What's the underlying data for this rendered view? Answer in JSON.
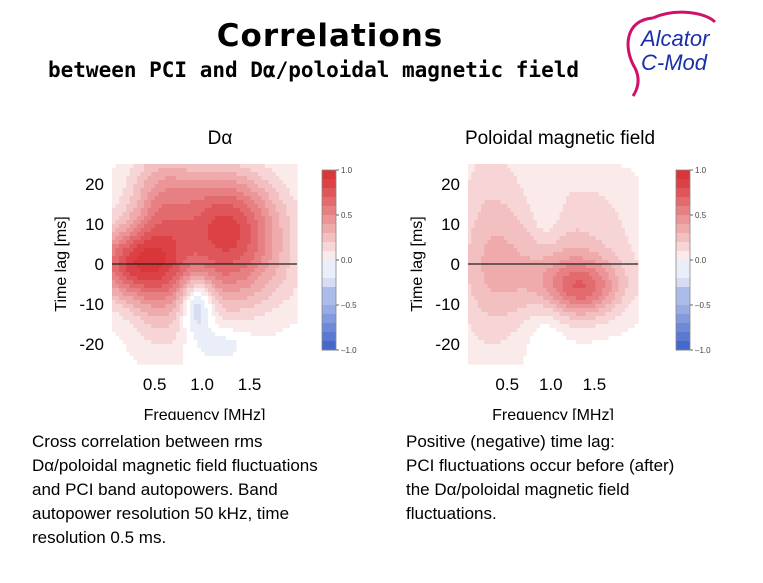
{
  "header": {
    "title": "Correlations",
    "subtitle": "between PCI and Dα/poloidal magnetic field"
  },
  "logo": {
    "line1": "Alcator",
    "line2": "C-Mod",
    "color": "#1a2fa8",
    "swoosh_color": "#d0106a"
  },
  "panels": {
    "left": {
      "title": "Dα"
    },
    "right": {
      "title": "Poloidal magnetic field"
    }
  },
  "captions": {
    "left": [
      "Cross correlation between rms",
      "Dα/poloidal magnetic field fluctuations",
      "and PCI band autopowers. Band",
      "autopower resolution 50 kHz, time",
      "resolution 0.5 ms."
    ],
    "right": [
      "Positive (negative) time lag:",
      "PCI fluctuations occur before (after)",
      "the Dα/poloidal magnetic field",
      "fluctuations."
    ]
  },
  "chart_data": [
    {
      "type": "heatmap",
      "title": "Dα",
      "xlabel": "Frequency [MHz]",
      "ylabel": "Time lag [ms]",
      "xticks": [
        "0.5",
        "1.0",
        "1.5"
      ],
      "xtick_values": [
        0.5,
        1.0,
        1.5
      ],
      "yticks": [
        "20",
        "10",
        "0",
        "-10",
        "-20"
      ],
      "ytick_values": [
        20,
        10,
        0,
        -10,
        -20
      ],
      "xlim": [
        0.05,
        2.0
      ],
      "ylim": [
        -25,
        25
      ],
      "colorbar": {
        "ticks": [
          "1.0",
          "0.5",
          "0.0",
          "–0.5",
          "–1.0"
        ],
        "values": [
          1.0,
          0.5,
          0.0,
          -0.5,
          -1.0
        ]
      },
      "colors": {
        "positive": "#d9363a",
        "negative": "#3a5fc8"
      },
      "features": [
        {
          "fx": 0.2,
          "lag": 0,
          "sx": 0.28,
          "sy": 6,
          "amp": 0.62
        },
        {
          "fx": 0.55,
          "lag": 5,
          "sx": 0.22,
          "sy": 16,
          "amp": 0.4
        },
        {
          "fx": 1.3,
          "lag": 10,
          "sx": 0.38,
          "sy": 9,
          "amp": 0.62
        },
        {
          "fx": 1.0,
          "lag": 3,
          "sx": 0.6,
          "sy": 12,
          "amp": 0.3
        },
        {
          "fx": 1.3,
          "lag": -4,
          "sx": 0.5,
          "sy": 7,
          "amp": 0.18
        },
        {
          "fx": 0.85,
          "lag": 20,
          "sx": 0.4,
          "sy": 6,
          "amp": 0.12
        },
        {
          "fx": 0.95,
          "lag": -10,
          "sx": 0.12,
          "sy": 5,
          "amp": -0.5
        },
        {
          "fx": 1.2,
          "lag": -20,
          "sx": 0.2,
          "sy": 3,
          "amp": -0.15
        }
      ]
    },
    {
      "type": "heatmap",
      "title": "Poloidal magnetic field",
      "xlabel": "Frequency [MHz]",
      "ylabel": "Time lag [ms]",
      "xticks": [
        "0.5",
        "1.0",
        "1.5"
      ],
      "xtick_values": [
        0.5,
        1.0,
        1.5
      ],
      "yticks": [
        "20",
        "10",
        "0",
        "-10",
        "-20"
      ],
      "ytick_values": [
        20,
        10,
        0,
        -10,
        -20
      ],
      "xlim": [
        0.05,
        2.0
      ],
      "ylim": [
        -25,
        25
      ],
      "colorbar": {
        "ticks": [
          "1.0",
          "0.5",
          "0.0",
          "–0.5",
          "–1.0"
        ],
        "values": [
          1.0,
          0.5,
          0.0,
          -0.5,
          -1.0
        ]
      },
      "colors": {
        "positive": "#d9363a",
        "negative": "#3a5fc8"
      },
      "features": [
        {
          "fx": 1.35,
          "lag": -6,
          "sx": 0.3,
          "sy": 5,
          "amp": 0.5
        },
        {
          "fx": 1.1,
          "lag": -2,
          "sx": 0.65,
          "sy": 9,
          "amp": 0.3
        },
        {
          "fx": 0.3,
          "lag": 5,
          "sx": 0.3,
          "sy": 22,
          "amp": 0.25
        },
        {
          "fx": 1.4,
          "lag": 15,
          "sx": 0.5,
          "sy": 8,
          "amp": 0.14
        },
        {
          "fx": 0.95,
          "lag": 12,
          "sx": 0.12,
          "sy": 6,
          "amp": -0.12
        },
        {
          "fx": 0.95,
          "lag": -15,
          "sx": 0.15,
          "sy": 6,
          "amp": -0.1
        }
      ]
    }
  ]
}
